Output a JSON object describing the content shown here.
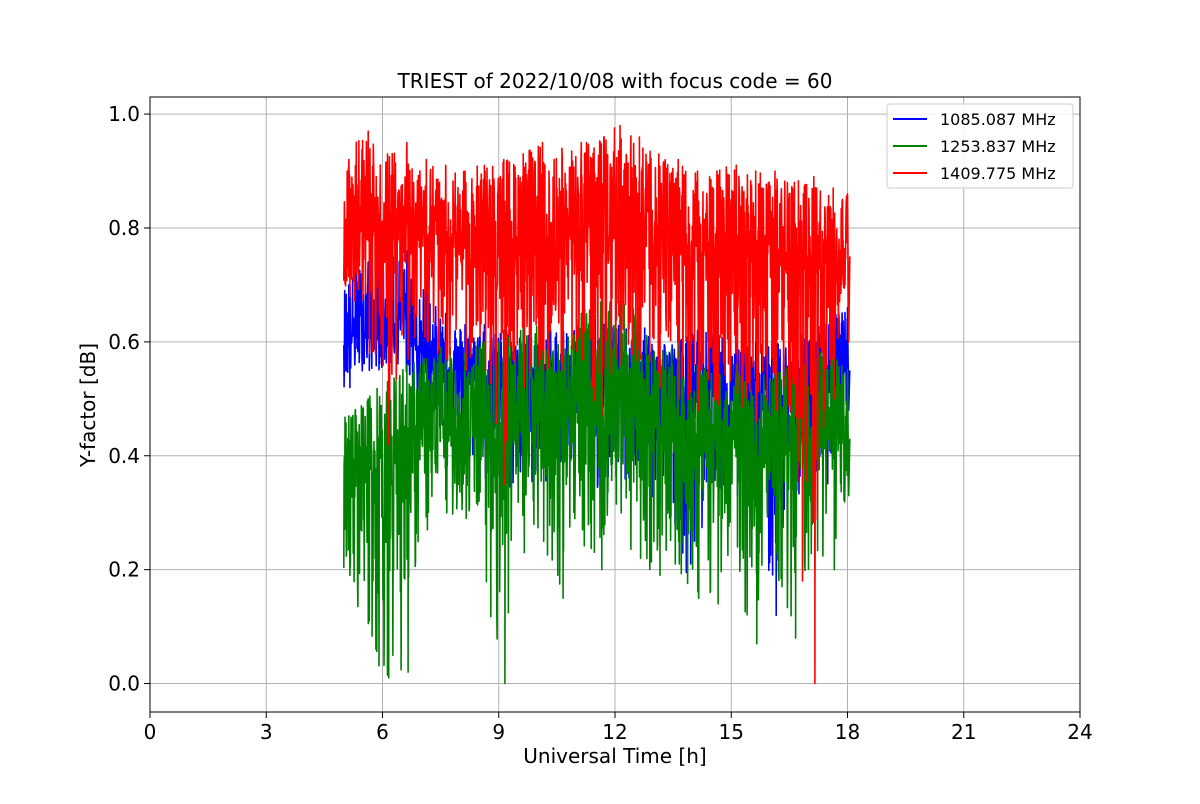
{
  "chart_data": {
    "type": "line",
    "title": "TRIEST of 2022/10/08 with focus code = 60",
    "xlabel": "Universal Time [h]",
    "ylabel": "Y-factor [dB]",
    "xlim": [
      0,
      24
    ],
    "ylim": [
      -0.05,
      1.03
    ],
    "xticks": [
      0,
      3,
      6,
      9,
      12,
      15,
      18,
      21,
      24
    ],
    "xtick_labels": [
      "0",
      "3",
      "6",
      "9",
      "12",
      "15",
      "18",
      "21",
      "24"
    ],
    "yticks": [
      0.0,
      0.2,
      0.4,
      0.6,
      0.8,
      1.0
    ],
    "ytick_labels": [
      "0.0",
      "0.2",
      "0.4",
      "0.6",
      "0.8",
      "1.0"
    ],
    "grid": true,
    "legend_position": "top-right",
    "series": [
      {
        "name": "1085.087 MHz",
        "color": "#0000ff",
        "x": [
          5.0,
          5.5,
          6.0,
          6.5,
          7.0,
          7.5,
          8.0,
          8.5,
          9.0,
          9.5,
          10.0,
          10.5,
          11.0,
          11.5,
          12.0,
          12.5,
          13.0,
          13.5,
          14.0,
          14.5,
          15.0,
          15.5,
          16.0,
          16.5,
          17.0,
          17.5,
          18.0
        ],
        "y": [
          0.6,
          0.62,
          0.6,
          0.65,
          0.58,
          0.55,
          0.53,
          0.54,
          0.52,
          0.52,
          0.5,
          0.5,
          0.53,
          0.52,
          0.52,
          0.5,
          0.5,
          0.5,
          0.49,
          0.52,
          0.5,
          0.5,
          0.48,
          0.5,
          0.53,
          0.53,
          0.55
        ],
        "min": [
          0.52,
          0.55,
          0.55,
          0.56,
          0.45,
          0.44,
          0.38,
          0.36,
          0.33,
          0.33,
          0.35,
          0.35,
          0.37,
          0.33,
          0.34,
          0.34,
          0.31,
          0.29,
          0.15,
          0.35,
          0.33,
          0.32,
          0.12,
          0.33,
          0.33,
          0.35,
          0.48
        ],
        "max": [
          0.7,
          0.74,
          0.74,
          0.76,
          0.7,
          0.65,
          0.63,
          0.63,
          0.62,
          0.62,
          0.62,
          0.63,
          0.63,
          0.64,
          0.63,
          0.63,
          0.62,
          0.6,
          0.62,
          0.62,
          0.6,
          0.6,
          0.6,
          0.6,
          0.62,
          0.65,
          0.66
        ]
      },
      {
        "name": "1253.837 MHz",
        "color": "#008000",
        "x": [
          5.0,
          5.5,
          6.0,
          6.5,
          7.0,
          7.5,
          8.0,
          8.5,
          9.0,
          9.5,
          10.0,
          10.5,
          11.0,
          11.5,
          12.0,
          12.5,
          13.0,
          13.5,
          14.0,
          14.5,
          15.0,
          15.5,
          16.0,
          16.5,
          17.0,
          17.5,
          18.0
        ],
        "y": [
          0.35,
          0.38,
          0.38,
          0.4,
          0.42,
          0.43,
          0.44,
          0.45,
          0.43,
          0.45,
          0.46,
          0.46,
          0.48,
          0.48,
          0.5,
          0.47,
          0.45,
          0.45,
          0.4,
          0.41,
          0.42,
          0.4,
          0.4,
          0.42,
          0.43,
          0.43,
          0.43
        ],
        "min": [
          0.19,
          0.11,
          0.01,
          0.02,
          0.27,
          0.3,
          0.29,
          0.28,
          0.0,
          0.23,
          0.25,
          0.15,
          0.27,
          0.2,
          0.3,
          0.22,
          0.19,
          0.21,
          0.15,
          0.14,
          0.24,
          0.07,
          0.24,
          0.08,
          0.2,
          0.2,
          0.33
        ],
        "max": [
          0.47,
          0.5,
          0.53,
          0.56,
          0.57,
          0.6,
          0.58,
          0.6,
          0.62,
          0.63,
          0.63,
          0.6,
          0.65,
          0.67,
          0.67,
          0.66,
          0.59,
          0.6,
          0.56,
          0.55,
          0.56,
          0.53,
          0.55,
          0.56,
          0.56,
          0.6,
          0.55
        ]
      },
      {
        "name": "1409.775 MHz",
        "color": "#ff0000",
        "x": [
          5.0,
          5.5,
          6.0,
          6.5,
          7.0,
          7.5,
          8.0,
          8.5,
          9.0,
          9.5,
          10.0,
          10.5,
          11.0,
          11.5,
          12.0,
          12.5,
          13.0,
          13.5,
          14.0,
          14.5,
          15.0,
          15.5,
          16.0,
          16.5,
          17.0,
          17.5,
          18.0
        ],
        "y": [
          0.78,
          0.78,
          0.78,
          0.78,
          0.79,
          0.78,
          0.77,
          0.76,
          0.76,
          0.76,
          0.77,
          0.78,
          0.78,
          0.78,
          0.8,
          0.78,
          0.77,
          0.76,
          0.75,
          0.76,
          0.77,
          0.75,
          0.74,
          0.73,
          0.74,
          0.73,
          0.75
        ],
        "min": [
          0.68,
          0.58,
          0.42,
          0.57,
          0.6,
          0.57,
          0.55,
          0.55,
          0.35,
          0.52,
          0.55,
          0.55,
          0.57,
          0.47,
          0.56,
          0.57,
          0.52,
          0.5,
          0.48,
          0.49,
          0.51,
          0.46,
          0.48,
          0.47,
          0.0,
          0.5,
          0.6
        ],
        "max": [
          0.92,
          0.97,
          0.93,
          0.95,
          0.92,
          0.91,
          0.9,
          0.91,
          0.92,
          0.93,
          0.95,
          0.94,
          0.95,
          0.95,
          0.98,
          0.96,
          0.93,
          0.92,
          0.9,
          0.9,
          0.91,
          0.9,
          0.9,
          0.88,
          0.89,
          0.87,
          0.86
        ]
      }
    ]
  }
}
